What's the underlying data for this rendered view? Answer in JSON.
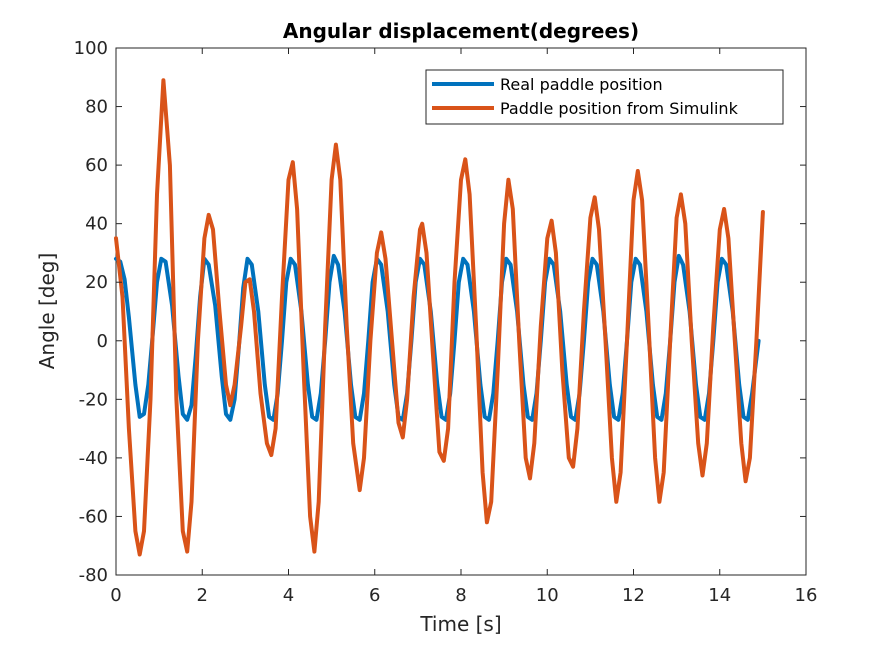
{
  "chart_data": {
    "type": "line",
    "title": "Angular displacement(degrees)",
    "xlabel": "Time [s]",
    "ylabel": "Angle [deg]",
    "xlim": [
      0,
      16
    ],
    "ylim": [
      -80,
      100
    ],
    "xticks": [
      0,
      2,
      4,
      6,
      8,
      10,
      12,
      14,
      16
    ],
    "yticks": [
      -80,
      -60,
      -40,
      -20,
      0,
      20,
      40,
      60,
      80,
      100
    ],
    "grid": false,
    "legend_position": "top-right",
    "series": [
      {
        "name": "Real paddle position",
        "color": "#0072BD",
        "points": [
          [
            0.0,
            28
          ],
          [
            0.1,
            27
          ],
          [
            0.2,
            21
          ],
          [
            0.3,
            8
          ],
          [
            0.45,
            -15
          ],
          [
            0.55,
            -26
          ],
          [
            0.65,
            -25
          ],
          [
            0.75,
            -15
          ],
          [
            0.85,
            2
          ],
          [
            0.95,
            20
          ],
          [
            1.05,
            28
          ],
          [
            1.15,
            27
          ],
          [
            1.3,
            12
          ],
          [
            1.45,
            -12
          ],
          [
            1.55,
            -25
          ],
          [
            1.65,
            -27
          ],
          [
            1.75,
            -22
          ],
          [
            1.85,
            -5
          ],
          [
            1.95,
            15
          ],
          [
            2.05,
            28
          ],
          [
            2.15,
            26
          ],
          [
            2.3,
            12
          ],
          [
            2.45,
            -12
          ],
          [
            2.55,
            -25
          ],
          [
            2.65,
            -27
          ],
          [
            2.75,
            -20
          ],
          [
            2.85,
            -2
          ],
          [
            2.95,
            18
          ],
          [
            3.05,
            28
          ],
          [
            3.15,
            26
          ],
          [
            3.3,
            10
          ],
          [
            3.45,
            -15
          ],
          [
            3.55,
            -26
          ],
          [
            3.65,
            -27
          ],
          [
            3.75,
            -18
          ],
          [
            3.85,
            0
          ],
          [
            3.95,
            20
          ],
          [
            4.05,
            28
          ],
          [
            4.15,
            26
          ],
          [
            4.3,
            10
          ],
          [
            4.45,
            -15
          ],
          [
            4.55,
            -26
          ],
          [
            4.65,
            -27
          ],
          [
            4.75,
            -18
          ],
          [
            4.85,
            0
          ],
          [
            4.95,
            20
          ],
          [
            5.05,
            29
          ],
          [
            5.15,
            26
          ],
          [
            5.3,
            10
          ],
          [
            5.45,
            -15
          ],
          [
            5.55,
            -26
          ],
          [
            5.65,
            -27
          ],
          [
            5.75,
            -18
          ],
          [
            5.85,
            0
          ],
          [
            5.95,
            20
          ],
          [
            6.05,
            28
          ],
          [
            6.15,
            26
          ],
          [
            6.3,
            10
          ],
          [
            6.45,
            -15
          ],
          [
            6.55,
            -26
          ],
          [
            6.65,
            -27
          ],
          [
            6.75,
            -18
          ],
          [
            6.85,
            0
          ],
          [
            6.95,
            20
          ],
          [
            7.05,
            28
          ],
          [
            7.15,
            26
          ],
          [
            7.3,
            10
          ],
          [
            7.45,
            -15
          ],
          [
            7.55,
            -26
          ],
          [
            7.65,
            -27
          ],
          [
            7.75,
            -18
          ],
          [
            7.85,
            0
          ],
          [
            7.95,
            20
          ],
          [
            8.05,
            28
          ],
          [
            8.15,
            26
          ],
          [
            8.3,
            10
          ],
          [
            8.45,
            -15
          ],
          [
            8.55,
            -26
          ],
          [
            8.65,
            -27
          ],
          [
            8.75,
            -18
          ],
          [
            8.85,
            0
          ],
          [
            8.95,
            20
          ],
          [
            9.05,
            28
          ],
          [
            9.15,
            26
          ],
          [
            9.3,
            10
          ],
          [
            9.45,
            -15
          ],
          [
            9.55,
            -26
          ],
          [
            9.65,
            -27
          ],
          [
            9.75,
            -18
          ],
          [
            9.85,
            0
          ],
          [
            9.95,
            20
          ],
          [
            10.05,
            28
          ],
          [
            10.15,
            26
          ],
          [
            10.3,
            10
          ],
          [
            10.45,
            -15
          ],
          [
            10.55,
            -26
          ],
          [
            10.65,
            -27
          ],
          [
            10.75,
            -18
          ],
          [
            10.85,
            0
          ],
          [
            10.95,
            20
          ],
          [
            11.05,
            28
          ],
          [
            11.15,
            26
          ],
          [
            11.3,
            10
          ],
          [
            11.45,
            -15
          ],
          [
            11.55,
            -26
          ],
          [
            11.65,
            -27
          ],
          [
            11.75,
            -18
          ],
          [
            11.85,
            0
          ],
          [
            11.95,
            20
          ],
          [
            12.05,
            28
          ],
          [
            12.15,
            26
          ],
          [
            12.3,
            10
          ],
          [
            12.45,
            -15
          ],
          [
            12.55,
            -26
          ],
          [
            12.65,
            -27
          ],
          [
            12.75,
            -18
          ],
          [
            12.85,
            0
          ],
          [
            12.95,
            20
          ],
          [
            13.05,
            29
          ],
          [
            13.15,
            26
          ],
          [
            13.3,
            10
          ],
          [
            13.45,
            -15
          ],
          [
            13.55,
            -26
          ],
          [
            13.65,
            -27
          ],
          [
            13.75,
            -18
          ],
          [
            13.85,
            0
          ],
          [
            13.95,
            20
          ],
          [
            14.05,
            28
          ],
          [
            14.15,
            26
          ],
          [
            14.3,
            10
          ],
          [
            14.45,
            -15
          ],
          [
            14.55,
            -26
          ],
          [
            14.65,
            -27
          ],
          [
            14.75,
            -18
          ],
          [
            14.9,
            0
          ]
        ]
      },
      {
        "name": "Paddle position from Simulink",
        "color": "#D95319",
        "points": [
          [
            0.0,
            35
          ],
          [
            0.15,
            15
          ],
          [
            0.3,
            -30
          ],
          [
            0.45,
            -65
          ],
          [
            0.55,
            -73
          ],
          [
            0.65,
            -65
          ],
          [
            0.8,
            -20
          ],
          [
            0.95,
            50
          ],
          [
            1.1,
            89
          ],
          [
            1.25,
            60
          ],
          [
            1.4,
            -20
          ],
          [
            1.55,
            -65
          ],
          [
            1.65,
            -72
          ],
          [
            1.75,
            -55
          ],
          [
            1.9,
            0
          ],
          [
            2.05,
            35
          ],
          [
            2.15,
            43
          ],
          [
            2.25,
            38
          ],
          [
            2.4,
            10
          ],
          [
            2.55,
            -15
          ],
          [
            2.65,
            -22
          ],
          [
            2.75,
            -15
          ],
          [
            2.9,
            5
          ],
          [
            3.0,
            20
          ],
          [
            3.1,
            21
          ],
          [
            3.2,
            10
          ],
          [
            3.35,
            -18
          ],
          [
            3.5,
            -35
          ],
          [
            3.6,
            -39
          ],
          [
            3.7,
            -30
          ],
          [
            3.85,
            15
          ],
          [
            4.0,
            55
          ],
          [
            4.1,
            61
          ],
          [
            4.2,
            45
          ],
          [
            4.35,
            -10
          ],
          [
            4.5,
            -60
          ],
          [
            4.6,
            -72
          ],
          [
            4.7,
            -55
          ],
          [
            4.85,
            5
          ],
          [
            5.0,
            55
          ],
          [
            5.1,
            67
          ],
          [
            5.2,
            55
          ],
          [
            5.35,
            5
          ],
          [
            5.5,
            -35
          ],
          [
            5.65,
            -51
          ],
          [
            5.75,
            -40
          ],
          [
            5.9,
            0
          ],
          [
            6.05,
            30
          ],
          [
            6.15,
            37
          ],
          [
            6.25,
            28
          ],
          [
            6.4,
            0
          ],
          [
            6.55,
            -28
          ],
          [
            6.65,
            -33
          ],
          [
            6.75,
            -20
          ],
          [
            6.9,
            15
          ],
          [
            7.05,
            38
          ],
          [
            7.1,
            40
          ],
          [
            7.2,
            30
          ],
          [
            7.35,
            -5
          ],
          [
            7.5,
            -38
          ],
          [
            7.6,
            -41
          ],
          [
            7.7,
            -30
          ],
          [
            7.85,
            20
          ],
          [
            8.0,
            55
          ],
          [
            8.1,
            62
          ],
          [
            8.2,
            50
          ],
          [
            8.35,
            5
          ],
          [
            8.5,
            -45
          ],
          [
            8.6,
            -62
          ],
          [
            8.7,
            -55
          ],
          [
            8.85,
            -10
          ],
          [
            9.0,
            40
          ],
          [
            9.1,
            55
          ],
          [
            9.2,
            45
          ],
          [
            9.35,
            0
          ],
          [
            9.5,
            -40
          ],
          [
            9.6,
            -47
          ],
          [
            9.7,
            -35
          ],
          [
            9.85,
            5
          ],
          [
            10.0,
            35
          ],
          [
            10.1,
            41
          ],
          [
            10.2,
            30
          ],
          [
            10.35,
            -10
          ],
          [
            10.5,
            -40
          ],
          [
            10.6,
            -43
          ],
          [
            10.7,
            -30
          ],
          [
            10.85,
            10
          ],
          [
            11.0,
            42
          ],
          [
            11.1,
            49
          ],
          [
            11.2,
            38
          ],
          [
            11.35,
            0
          ],
          [
            11.5,
            -40
          ],
          [
            11.6,
            -55
          ],
          [
            11.7,
            -45
          ],
          [
            11.85,
            0
          ],
          [
            12.0,
            48
          ],
          [
            12.1,
            58
          ],
          [
            12.2,
            48
          ],
          [
            12.35,
            5
          ],
          [
            12.5,
            -40
          ],
          [
            12.6,
            -55
          ],
          [
            12.7,
            -45
          ],
          [
            12.85,
            0
          ],
          [
            13.0,
            42
          ],
          [
            13.1,
            50
          ],
          [
            13.2,
            40
          ],
          [
            13.35,
            0
          ],
          [
            13.5,
            -35
          ],
          [
            13.6,
            -46
          ],
          [
            13.7,
            -35
          ],
          [
            13.85,
            5
          ],
          [
            14.0,
            38
          ],
          [
            14.1,
            45
          ],
          [
            14.2,
            35
          ],
          [
            14.35,
            0
          ],
          [
            14.5,
            -35
          ],
          [
            14.6,
            -48
          ],
          [
            14.7,
            -40
          ],
          [
            14.85,
            0
          ],
          [
            15.0,
            44
          ]
        ]
      }
    ]
  }
}
